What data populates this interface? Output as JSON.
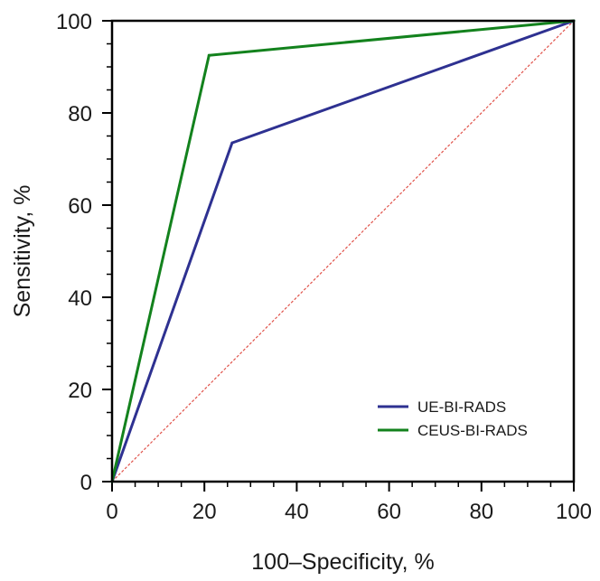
{
  "chart_data": {
    "type": "line",
    "title": "",
    "xlabel": "100–Specificity, %",
    "ylabel": "Sensitivity, %",
    "xlim": [
      0,
      100
    ],
    "ylim": [
      0,
      100
    ],
    "x_ticks": [
      0,
      20,
      40,
      60,
      80,
      100
    ],
    "y_ticks": [
      0,
      20,
      40,
      60,
      80,
      100
    ],
    "x_tick_labels": [
      "0",
      "20",
      "40",
      "60",
      "80",
      "100"
    ],
    "y_tick_labels": [
      "0",
      "20",
      "40",
      "60",
      "80",
      "100"
    ],
    "minor_tick_step": 5,
    "grid": false,
    "legend_position": "bottom-right",
    "series": [
      {
        "name": "UE-BI-RADS",
        "color": "#2e3191",
        "points": [
          [
            0,
            0
          ],
          [
            26,
            73.5
          ],
          [
            100,
            100
          ]
        ]
      },
      {
        "name": "CEUS-BI-RADS",
        "color": "#13821d",
        "points": [
          [
            0,
            0
          ],
          [
            21,
            92.5
          ],
          [
            100,
            100
          ]
        ]
      }
    ],
    "reference_line": {
      "color": "#e0524a",
      "points": [
        [
          0,
          0
        ],
        [
          100,
          100
        ]
      ]
    }
  }
}
